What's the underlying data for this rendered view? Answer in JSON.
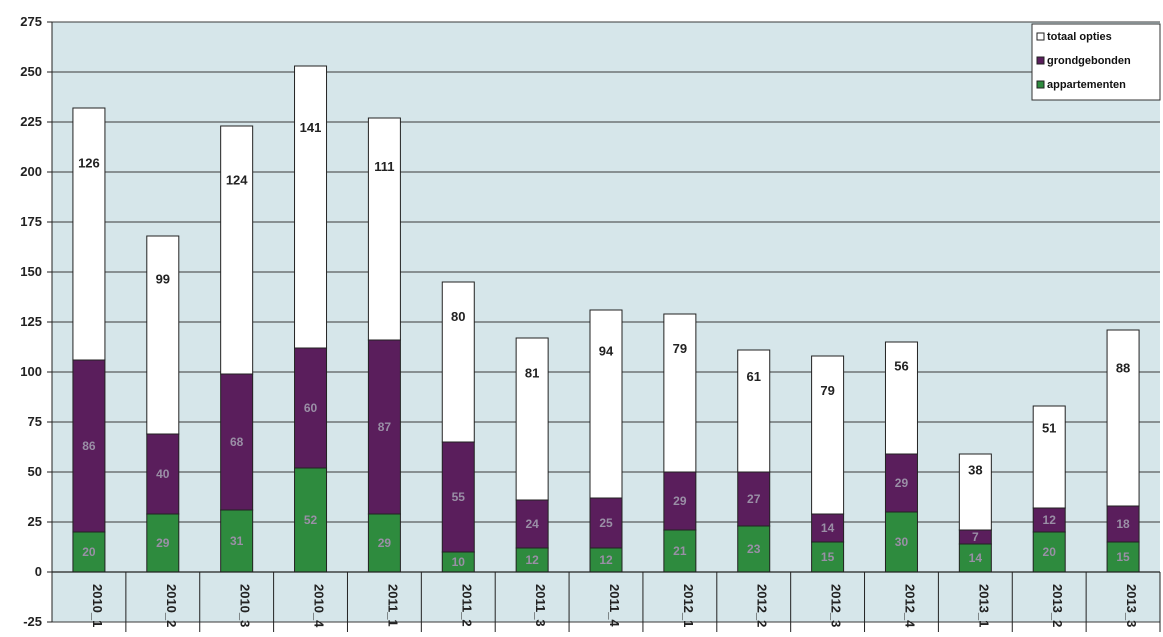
{
  "chart_data": {
    "type": "bar",
    "stacked": true,
    "title": "",
    "xlabel": "",
    "ylabel": "",
    "ylim": [
      -25,
      275
    ],
    "yticks": [
      -25,
      0,
      25,
      50,
      75,
      100,
      125,
      150,
      175,
      200,
      225,
      250,
      275
    ],
    "grid": true,
    "legend_position": "top-right",
    "categories": [
      "2010_1",
      "2010_2",
      "2010_3",
      "2010_4",
      "2011_1",
      "2011_2",
      "2011_3",
      "2011_4",
      "2012_1",
      "2012_2",
      "2012_3",
      "2012_4",
      "2013_1",
      "2013_2",
      "2013_3"
    ],
    "series": [
      {
        "name": "appartementen",
        "color": "#2e8b3e",
        "values": [
          20,
          29,
          31,
          52,
          29,
          10,
          12,
          12,
          21,
          23,
          15,
          30,
          14,
          20,
          15
        ]
      },
      {
        "name": "grondgebonden",
        "color": "#5a1e5c",
        "values": [
          86,
          40,
          68,
          60,
          87,
          55,
          24,
          25,
          29,
          27,
          14,
          29,
          7,
          12,
          18
        ]
      },
      {
        "name": "totaal opties",
        "color": "#ffffff",
        "values": [
          126,
          99,
          124,
          141,
          111,
          80,
          81,
          94,
          79,
          61,
          79,
          56,
          38,
          51,
          88
        ]
      }
    ],
    "legend_order": [
      "totaal opties",
      "grondgebonden",
      "appartementen"
    ],
    "plot_background": "#d6e6ea"
  }
}
